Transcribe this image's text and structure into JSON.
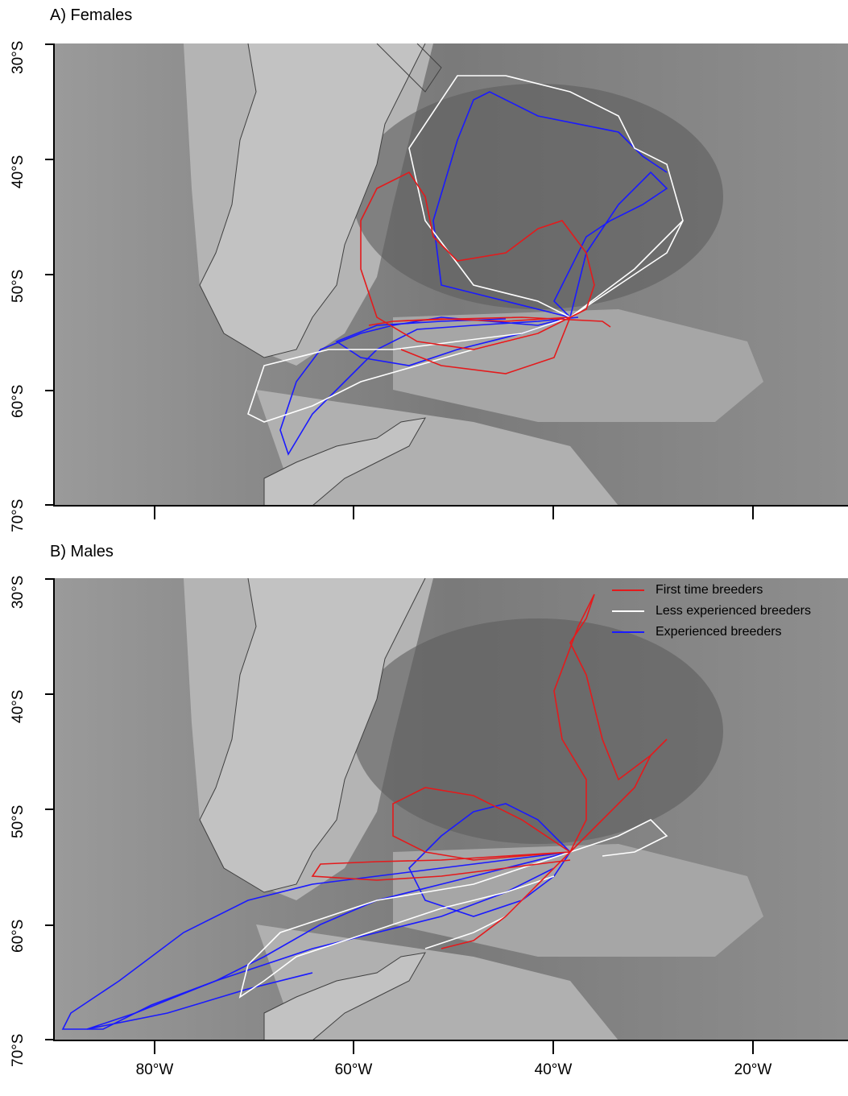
{
  "panels": [
    {
      "title": "A) Females"
    },
    {
      "title": "B) Males"
    }
  ],
  "y_ticks": [
    "30°S",
    "40°S",
    "50°S",
    "60°S",
    "70°S"
  ],
  "x_ticks": [
    "80°W",
    "60°W",
    "40°W",
    "20°W"
  ],
  "legend": [
    {
      "label": "First time breeders",
      "color": "#e41a1c"
    },
    {
      "label": "Less experienced breeders",
      "color": "#ffffff"
    },
    {
      "label": "Experienced breeders",
      "color": "#1a1aff"
    }
  ],
  "colors": {
    "first": "#e41a1c",
    "less": "#ffffff",
    "experienced": "#1a1aff",
    "ocean_deep": "#6e6e6e",
    "ocean_shelf": "#a8a8a8",
    "land": "#bdbdbd"
  }
}
